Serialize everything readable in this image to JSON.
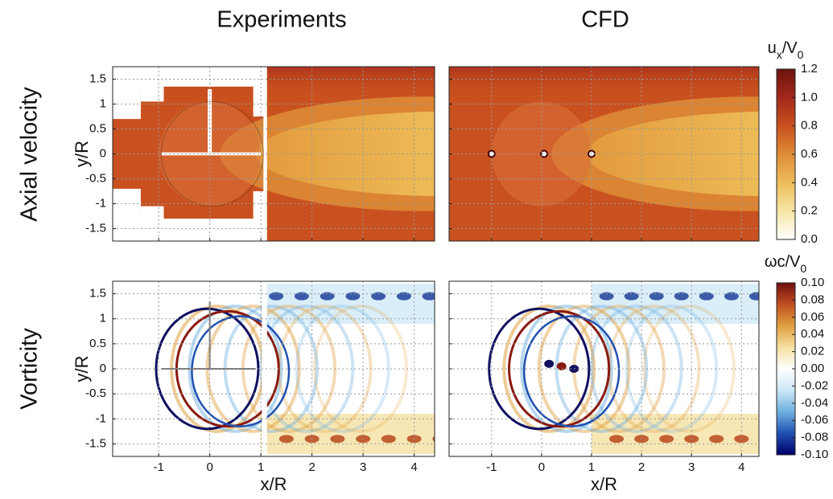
{
  "column_titles": [
    "Experiments",
    "CFD"
  ],
  "row_titles": [
    "Axial velocity",
    "Vorticity"
  ],
  "chart_data": [
    {
      "type": "contour",
      "ylabel": "y/R",
      "xlim": [
        -1.9,
        4.4
      ],
      "ylim": [
        -1.75,
        1.75
      ],
      "xticks": [
        -1,
        0,
        1,
        2,
        3,
        4
      ],
      "yticks": [
        -1.5,
        -1,
        -0.5,
        0,
        0.5,
        1,
        1.5
      ],
      "grid": true
    },
    {
      "type": "contour",
      "xlim": [
        -1.85,
        4.35
      ],
      "ylim": [
        -1.75,
        1.75
      ],
      "xticks": [
        -1,
        0,
        1,
        2,
        3,
        4
      ],
      "yticks": [
        -1.5,
        -1,
        -0.5,
        0,
        0.5,
        1,
        1.5
      ],
      "grid": true
    },
    {
      "type": "contour",
      "xlabel": "x/R",
      "ylabel": "y/R",
      "xlim": [
        -1.9,
        4.4
      ],
      "ylim": [
        -1.75,
        1.75
      ],
      "xticks": [
        -1,
        0,
        1,
        2,
        3,
        4
      ],
      "yticks": [
        -1.5,
        -1,
        -0.5,
        0,
        0.5,
        1,
        1.5
      ],
      "grid": true
    },
    {
      "type": "contour",
      "xlabel": "x/R",
      "xlim": [
        -1.85,
        4.35
      ],
      "ylim": [
        -1.75,
        1.75
      ],
      "xticks": [
        -1,
        0,
        1,
        2,
        3,
        4
      ],
      "yticks": [
        -1.5,
        -1,
        -0.5,
        0,
        0.5,
        1,
        1.5
      ],
      "grid": true
    }
  ],
  "colorbars": [
    {
      "label_parts": [
        "u",
        "x",
        "/V",
        "0"
      ],
      "lim": [
        0,
        1.2
      ],
      "ticks": [
        {
          "value": 0,
          "label": "0.0"
        },
        0.2,
        0.4,
        0.6,
        0.8,
        {
          "value": 1,
          "label": "1.0"
        },
        1.2
      ],
      "colors": [
        "#ffffff",
        "#f6e6a6",
        "#edbd5a",
        "#df8c36",
        "#c9511f",
        "#a2291a",
        "#6b1410"
      ]
    },
    {
      "label_parts": [
        "ωc/V",
        "0"
      ],
      "lim": [
        -0.1,
        0.1
      ],
      "ticks": [
        {
          "value": -0.1,
          "label": "-0.10"
        },
        -0.08,
        -0.06,
        -0.04,
        -0.02,
        {
          "value": 0,
          "label": "0.00"
        },
        0.02,
        0.04,
        0.06,
        0.08,
        {
          "value": 0.1,
          "label": "0.10"
        }
      ],
      "colors": [
        "#00006a",
        "#1f4fb0",
        "#6fb0e0",
        "#cbe7f6",
        "#ffffff",
        "#f5e1a2",
        "#e0a040",
        "#c05020",
        "#701010"
      ]
    }
  ]
}
